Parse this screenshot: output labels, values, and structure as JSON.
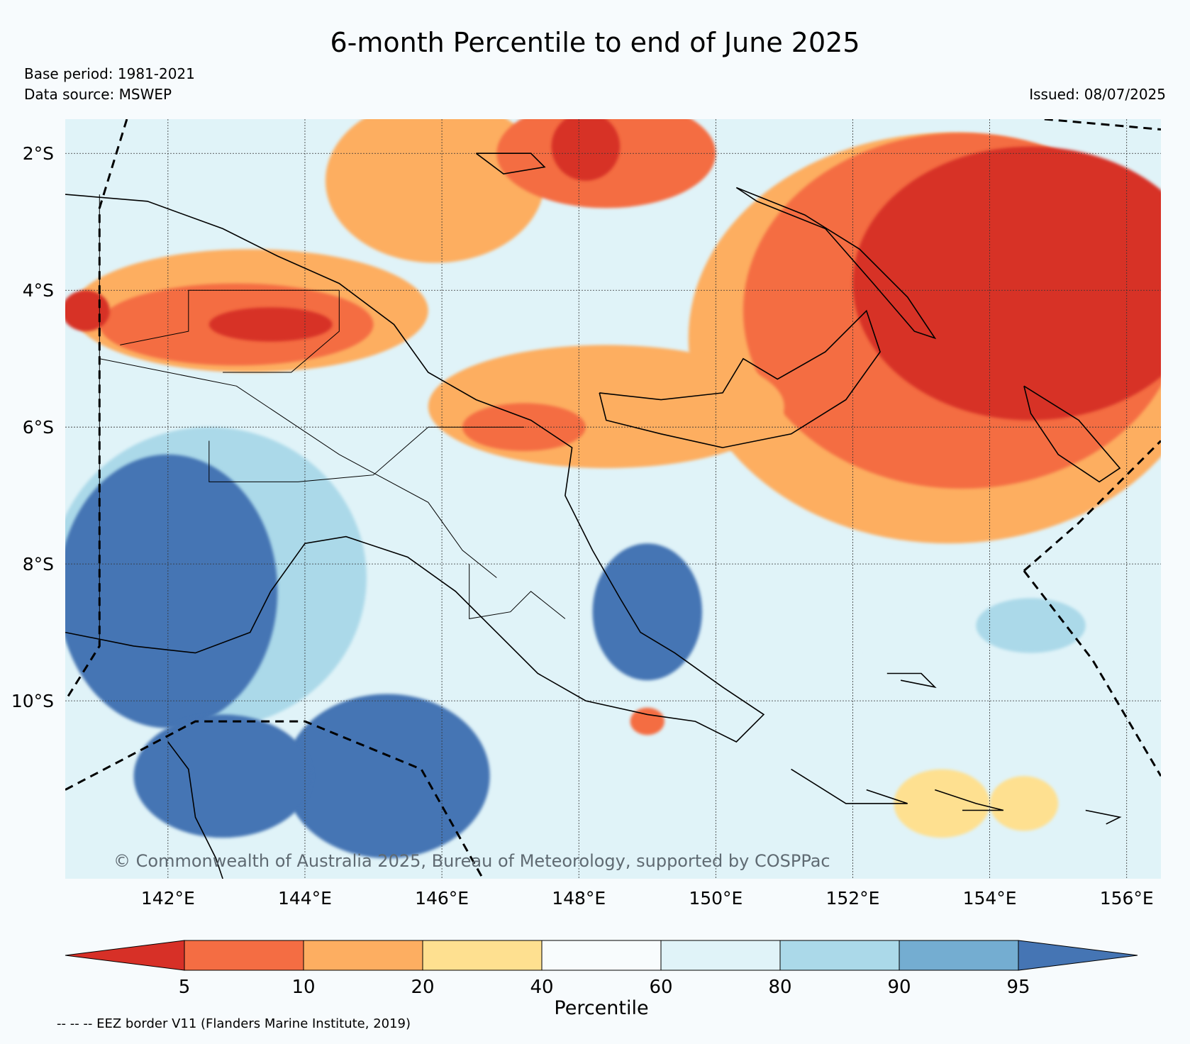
{
  "title": "6-month Percentile to end of June 2025",
  "base_period": "Base period: 1981-2021",
  "data_source": "Data source: MSWEP",
  "issued": "Issued: 08/07/2025",
  "copyright": "© Commonwealth of Australia 2025, Bureau of Meteorology, supported by COSPPac",
  "footnote": "-- -- -- EEZ border V11 (Flanders Marine Institute, 2019)",
  "map": {
    "lon_range": [
      140.5,
      156.5
    ],
    "lat_range": [
      -12.6,
      -1.5
    ],
    "lat_ticks": [
      {
        "value": -2,
        "label": "2°S"
      },
      {
        "value": -4,
        "label": "4°S"
      },
      {
        "value": -6,
        "label": "6°S"
      },
      {
        "value": -8,
        "label": "8°S"
      },
      {
        "value": -10,
        "label": "10°S"
      }
    ],
    "lon_ticks": [
      {
        "value": 142,
        "label": "142°E"
      },
      {
        "value": 144,
        "label": "144°E"
      },
      {
        "value": 146,
        "label": "146°E"
      },
      {
        "value": 148,
        "label": "148°E"
      },
      {
        "value": 150,
        "label": "150°E"
      },
      {
        "value": 152,
        "label": "152°E"
      },
      {
        "value": 154,
        "label": "154°E"
      },
      {
        "value": 156,
        "label": "156°E"
      }
    ],
    "gridlines": true,
    "regions": [
      {
        "level": 20,
        "lon": 145.9,
        "lat": -2.4,
        "rx": 1.6,
        "ry": 1.2
      },
      {
        "level": 10,
        "lon": 148.4,
        "lat": -2.0,
        "rx": 1.6,
        "ry": 0.8
      },
      {
        "level": 5,
        "lon": 148.1,
        "lat": -1.9,
        "rx": 0.5,
        "ry": 0.5
      },
      {
        "level": 20,
        "lon": 153.4,
        "lat": -4.7,
        "rx": 3.8,
        "ry": 3.0
      },
      {
        "level": 10,
        "lon": 153.6,
        "lat": -4.3,
        "rx": 3.2,
        "ry": 2.6
      },
      {
        "level": 5,
        "lon": 154.6,
        "lat": -3.9,
        "rx": 2.6,
        "ry": 2.0
      },
      {
        "level": 20,
        "lon": 148.4,
        "lat": -5.7,
        "rx": 2.6,
        "ry": 0.9
      },
      {
        "level": 10,
        "lon": 147.2,
        "lat": -6.0,
        "rx": 0.9,
        "ry": 0.35
      },
      {
        "level": 20,
        "lon": 143.2,
        "lat": -4.3,
        "rx": 2.6,
        "ry": 0.9
      },
      {
        "level": 10,
        "lon": 143.0,
        "lat": -4.5,
        "rx": 2.0,
        "ry": 0.6
      },
      {
        "level": 5,
        "lon": 143.5,
        "lat": -4.5,
        "rx": 0.9,
        "ry": 0.25
      },
      {
        "level": 5,
        "lon": 140.8,
        "lat": -4.3,
        "rx": 0.35,
        "ry": 0.3
      },
      {
        "level": 90,
        "lon": 142.6,
        "lat": -8.2,
        "rx": 2.3,
        "ry": 2.2
      },
      {
        "level": 95,
        "lon": 142.0,
        "lat": -8.4,
        "rx": 1.6,
        "ry": 2.0
      },
      {
        "level": 95,
        "lon": 145.2,
        "lat": -11.1,
        "rx": 1.5,
        "ry": 1.2
      },
      {
        "level": 95,
        "lon": 142.8,
        "lat": -11.1,
        "rx": 1.3,
        "ry": 0.9
      },
      {
        "level": 95,
        "lon": 149.0,
        "lat": -8.7,
        "rx": 0.8,
        "ry": 1.0
      },
      {
        "level": 80,
        "lon": 154.1,
        "lat": -9.3,
        "rx": 2.0,
        "ry": 0.9
      },
      {
        "level": 90,
        "lon": 154.6,
        "lat": -8.9,
        "rx": 0.8,
        "ry": 0.4
      },
      {
        "level": 40,
        "lon": 153.3,
        "lat": -11.5,
        "rx": 0.7,
        "ry": 0.5
      },
      {
        "level": 40,
        "lon": 154.5,
        "lat": -11.5,
        "rx": 0.5,
        "ry": 0.4
      },
      {
        "level": 10,
        "lon": 149.0,
        "lat": -10.3,
        "rx": 0.25,
        "ry": 0.2
      }
    ],
    "eez_borders": [
      [
        [
          141.4,
          -1.5
        ],
        [
          141.0,
          -2.8
        ],
        [
          141.0,
          -9.2
        ],
        [
          140.5,
          -10.0
        ]
      ],
      [
        [
          140.5,
          -11.3
        ],
        [
          142.4,
          -10.3
        ],
        [
          144.0,
          -10.3
        ],
        [
          145.7,
          -11.0
        ],
        [
          146.6,
          -12.6
        ]
      ],
      [
        [
          154.5,
          -8.1
        ],
        [
          155.3,
          -7.4
        ],
        [
          155.7,
          -7.0
        ],
        [
          156.5,
          -6.2
        ]
      ],
      [
        [
          154.5,
          -8.1
        ],
        [
          155.5,
          -9.4
        ],
        [
          156.5,
          -11.1
        ]
      ],
      [
        [
          154.8,
          -1.5
        ],
        [
          156.5,
          -1.65
        ]
      ]
    ],
    "coastlines": [
      [
        [
          140.5,
          -2.6
        ],
        [
          141.7,
          -2.7
        ],
        [
          142.8,
          -3.1
        ],
        [
          143.6,
          -3.5
        ],
        [
          144.5,
          -3.9
        ],
        [
          145.3,
          -4.5
        ],
        [
          145.8,
          -5.2
        ],
        [
          146.5,
          -5.6
        ],
        [
          147.3,
          -5.9
        ],
        [
          147.9,
          -6.3
        ],
        [
          147.8,
          -7.0
        ],
        [
          148.2,
          -7.8
        ],
        [
          148.6,
          -8.5
        ],
        [
          148.9,
          -9.0
        ],
        [
          149.4,
          -9.3
        ],
        [
          150.1,
          -9.8
        ],
        [
          150.7,
          -10.2
        ],
        [
          150.3,
          -10.6
        ],
        [
          149.7,
          -10.3
        ],
        [
          149.0,
          -10.2
        ],
        [
          148.1,
          -10.0
        ],
        [
          147.4,
          -9.6
        ],
        [
          146.8,
          -9.0
        ],
        [
          146.2,
          -8.4
        ],
        [
          145.5,
          -7.9
        ],
        [
          144.6,
          -7.6
        ],
        [
          144.0,
          -7.7
        ],
        [
          143.5,
          -8.4
        ],
        [
          143.2,
          -9.0
        ],
        [
          142.4,
          -9.3
        ],
        [
          141.5,
          -9.2
        ],
        [
          140.5,
          -9.0
        ]
      ],
      [
        [
          142.0,
          -10.6
        ],
        [
          142.3,
          -11.0
        ],
        [
          142.4,
          -11.7
        ],
        [
          142.7,
          -12.3
        ],
        [
          142.8,
          -12.6
        ]
      ],
      [
        [
          148.3,
          -5.5
        ],
        [
          149.2,
          -5.6
        ],
        [
          150.1,
          -5.5
        ],
        [
          150.4,
          -5.0
        ],
        [
          150.9,
          -5.3
        ],
        [
          151.6,
          -4.9
        ],
        [
          152.2,
          -4.3
        ],
        [
          152.4,
          -4.9
        ],
        [
          151.9,
          -5.6
        ],
        [
          151.1,
          -6.1
        ],
        [
          150.1,
          -6.3
        ],
        [
          149.2,
          -6.1
        ],
        [
          148.4,
          -5.9
        ],
        [
          148.3,
          -5.5
        ]
      ],
      [
        [
          150.3,
          -2.5
        ],
        [
          151.3,
          -2.9
        ],
        [
          152.1,
          -3.4
        ],
        [
          152.8,
          -4.1
        ],
        [
          153.2,
          -4.7
        ],
        [
          152.9,
          -4.6
        ],
        [
          152.3,
          -3.9
        ],
        [
          151.6,
          -3.1
        ],
        [
          150.6,
          -2.7
        ],
        [
          150.3,
          -2.5
        ]
      ],
      [
        [
          146.5,
          -2.0
        ],
        [
          147.3,
          -2.0
        ],
        [
          147.5,
          -2.2
        ],
        [
          146.9,
          -2.3
        ],
        [
          146.5,
          -2.0
        ]
      ],
      [
        [
          154.5,
          -5.4
        ],
        [
          155.3,
          -5.9
        ],
        [
          155.9,
          -6.6
        ],
        [
          155.6,
          -6.8
        ],
        [
          155.0,
          -6.4
        ],
        [
          154.6,
          -5.8
        ],
        [
          154.5,
          -5.4
        ]
      ],
      [
        [
          152.5,
          -9.6
        ],
        [
          153.0,
          -9.6
        ],
        [
          153.2,
          -9.8
        ],
        [
          152.7,
          -9.7
        ]
      ],
      [
        [
          153.2,
          -11.3
        ],
        [
          153.8,
          -11.5
        ],
        [
          154.2,
          -11.6
        ],
        [
          153.6,
          -11.6
        ]
      ],
      [
        [
          151.1,
          -11.0
        ],
        [
          151.9,
          -11.5
        ],
        [
          152.8,
          -11.5
        ],
        [
          152.2,
          -11.3
        ]
      ],
      [
        [
          155.4,
          -11.6
        ],
        [
          155.9,
          -11.7
        ],
        [
          155.7,
          -11.8
        ]
      ]
    ],
    "borders": [
      [
        [
          141.0,
          -2.6
        ],
        [
          141.0,
          -9.1
        ]
      ],
      [
        [
          141.3,
          -4.8
        ],
        [
          142.3,
          -4.6
        ],
        [
          142.3,
          -4.0
        ],
        [
          143.2,
          -4.0
        ],
        [
          144.5,
          -4.0
        ],
        [
          144.5,
          -4.6
        ],
        [
          143.8,
          -5.2
        ],
        [
          142.8,
          -5.2
        ]
      ],
      [
        [
          141.0,
          -5.0
        ],
        [
          143.0,
          -5.4
        ],
        [
          144.5,
          -6.4
        ],
        [
          145.8,
          -7.1
        ],
        [
          146.3,
          -7.8
        ],
        [
          146.8,
          -8.2
        ]
      ],
      [
        [
          142.6,
          -6.2
        ],
        [
          142.6,
          -6.8
        ],
        [
          143.9,
          -6.8
        ],
        [
          145.0,
          -6.7
        ],
        [
          145.8,
          -6.0
        ],
        [
          147.2,
          -6.0
        ]
      ],
      [
        [
          146.4,
          -8.0
        ],
        [
          146.4,
          -8.8
        ],
        [
          147.0,
          -8.7
        ],
        [
          147.3,
          -8.4
        ],
        [
          147.8,
          -8.8
        ]
      ]
    ]
  },
  "colorbar": {
    "title": "Percentile",
    "extend": "both",
    "bounds": [
      5,
      10,
      20,
      40,
      60,
      80,
      90,
      95
    ],
    "labels": [
      "5",
      "10",
      "20",
      "40",
      "60",
      "80",
      "90",
      "95"
    ],
    "under_color": "#d73027",
    "over_color": "#4575b4",
    "colors": [
      "#f46d43",
      "#fdae61",
      "#fee090",
      "#f8fcfd",
      "#e0f3f8",
      "#abd9e9",
      "#74add1"
    ]
  },
  "level_colors": {
    "5": "#d73027",
    "10": "#f46d43",
    "20": "#fdae61",
    "40": "#fee090",
    "60": "#f8fcfd",
    "80": "#e0f3f8",
    "90": "#abd9e9",
    "95": "#4575b4"
  }
}
